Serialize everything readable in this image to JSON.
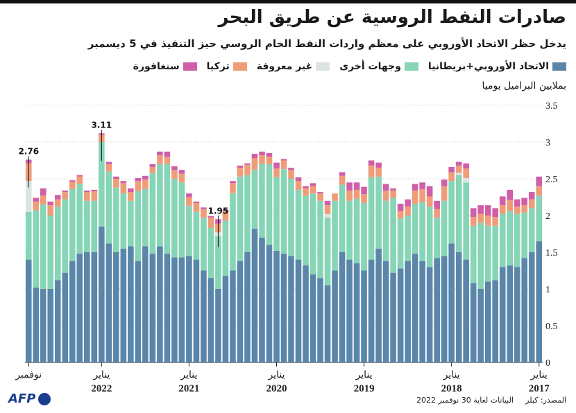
{
  "header": {
    "title": "صادرات النفط الروسية عن طريق البحر",
    "subtitle": "يدخل حظر الاتحاد الأوروبي على معظم واردات النفط الخام الروسي حيز التنفيذ في 5 ديسمبر",
    "unit": "بملايين البراميل يوميا"
  },
  "legend": [
    {
      "label": "الاتحاد الأوروبي+بريطانيا",
      "color": "#5a86aa"
    },
    {
      "label": "وجهات أخرى",
      "color": "#86d5b6"
    },
    {
      "label": "غير معروفة",
      "color": "#dde3e3"
    },
    {
      "label": "تركيا",
      "color": "#ef9d79"
    },
    {
      "label": "سنغافورة",
      "color": "#cf5fa8"
    }
  ],
  "footer": {
    "source": "المصدر: كبلر",
    "as_of": "البيانات لغاية 30 نوفمبر 2022",
    "logo": "AFP"
  },
  "chart_data": {
    "type": "bar",
    "stacked": true,
    "x_direction": "right-to-left (oldest month on the right)",
    "ylim": [
      0,
      3.5
    ],
    "yticks": [
      0,
      0.5,
      1,
      1.5,
      2,
      2.5,
      3,
      3.5
    ],
    "grid": true,
    "x_labels": [
      {
        "month_label": "يناير",
        "year": "2017",
        "month_index": 0
      },
      {
        "month_label": "يناير",
        "year": "2018",
        "month_index": 12
      },
      {
        "month_label": "يناير",
        "year": "2019",
        "month_index": 24
      },
      {
        "month_label": "يناير",
        "year": "2020",
        "month_index": 36
      },
      {
        "month_label": "يناير",
        "year": "2021",
        "month_index": 48
      },
      {
        "month_label": "يناير",
        "year": "2022",
        "month_index": 60
      },
      {
        "month_label": "نوفمبر",
        "year": "",
        "month_index": 70
      }
    ],
    "annotations": [
      {
        "text": "2.76",
        "month_index": 70
      },
      {
        "text": "3.11",
        "month_index": 60
      },
      {
        "text": "1.95",
        "month_index": 44
      }
    ],
    "series": [
      {
        "name": "الاتحاد الأوروبي+بريطانيا",
        "color": "#5a86aa",
        "values": [
          1.65,
          1.5,
          1.42,
          1.3,
          1.32,
          1.3,
          1.12,
          1.1,
          1.0,
          1.08,
          1.4,
          1.5,
          1.62,
          1.45,
          1.42,
          1.3,
          1.38,
          1.48,
          1.38,
          1.28,
          1.22,
          1.38,
          1.55,
          1.4,
          1.25,
          1.35,
          1.4,
          1.5,
          1.25,
          1.05,
          1.15,
          1.2,
          1.32,
          1.4,
          1.45,
          1.48,
          1.52,
          1.6,
          1.7,
          1.82,
          1.5,
          1.38,
          1.25,
          1.18,
          1.0,
          1.15,
          1.25,
          1.4,
          1.45,
          1.43,
          1.43,
          1.48,
          1.58,
          1.48,
          1.58,
          1.38,
          1.58,
          1.55,
          1.5,
          1.62,
          1.85,
          1.5,
          1.5,
          1.48,
          1.38,
          1.22,
          1.12,
          1.0,
          1.0,
          1.02,
          1.4
        ]
      },
      {
        "name": "وجهات أخرى",
        "color": "#86d5b6",
        "values": [
          0.62,
          0.6,
          0.62,
          0.72,
          0.74,
          0.72,
          0.74,
          0.76,
          0.9,
          0.78,
          1.05,
          1.05,
          0.85,
          0.75,
          0.55,
          0.82,
          0.8,
          0.68,
          0.62,
          0.68,
          1.02,
          0.82,
          0.98,
          1.12,
          0.92,
          0.88,
          0.8,
          0.92,
          0.95,
          0.92,
          1.05,
          1.1,
          0.95,
          0.95,
          1.05,
          1.15,
          1.0,
          1.1,
          1.0,
          0.8,
          1.05,
          1.15,
          1.05,
          0.75,
          0.72,
          0.68,
          0.72,
          0.65,
          0.68,
          1.02,
          1.07,
          1.22,
          1.12,
          1.1,
          0.78,
          0.95,
          0.62,
          0.75,
          0.88,
          0.98,
          1.15,
          0.7,
          0.7,
          0.95,
          0.98,
          1.0,
          1.0,
          1.0,
          1.15,
          1.05,
          0.65
        ]
      },
      {
        "name": "غير معروفة",
        "color": "#dde3e3",
        "values": [
          0.0,
          0.0,
          0.0,
          0.0,
          0.0,
          0.0,
          0.0,
          0.0,
          0.0,
          0.0,
          0.06,
          0.03,
          0.0,
          0.0,
          0.0,
          0.0,
          0.0,
          0.0,
          0.0,
          0.0,
          0.0,
          0.0,
          0.0,
          0.0,
          0.0,
          0.0,
          0.0,
          0.0,
          0.0,
          0.05,
          0.0,
          0.0,
          0.0,
          0.0,
          0.0,
          0.0,
          0.0,
          0.0,
          0.0,
          0.0,
          0.0,
          0.0,
          0.0,
          0.0,
          0.05,
          0.0,
          0.0,
          0.0,
          0.0,
          0.0,
          0.0,
          0.0,
          0.0,
          0.0,
          0.0,
          0.0,
          0.0,
          0.0,
          0.0,
          0.0,
          0.0,
          0.0,
          0.0,
          0.0,
          0.0,
          0.0,
          0.0,
          0.0,
          0.0,
          0.0,
          0.42
        ]
      },
      {
        "name": "تركيا",
        "color": "#ef9d79",
        "values": [
          0.13,
          0.12,
          0.1,
          0.1,
          0.15,
          0.12,
          0.12,
          0.14,
          0.12,
          0.12,
          0.13,
          0.1,
          0.12,
          0.2,
          0.12,
          0.14,
          0.18,
          0.18,
          0.12,
          0.1,
          0.1,
          0.14,
          0.12,
          0.16,
          0.12,
          0.12,
          0.14,
          0.12,
          0.1,
          0.12,
          0.1,
          0.1,
          0.1,
          0.12,
          0.12,
          0.12,
          0.12,
          0.1,
          0.12,
          0.16,
          0.14,
          0.12,
          0.14,
          0.13,
          0.12,
          0.14,
          0.12,
          0.12,
          0.12,
          0.12,
          0.12,
          0.1,
          0.12,
          0.08,
          0.13,
          0.14,
          0.12,
          0.14,
          0.12,
          0.1,
          0.1,
          0.13,
          0.12,
          0.1,
          0.1,
          0.1,
          0.1,
          0.14,
          0.12,
          0.12,
          0.24
        ]
      },
      {
        "name": "سنغافورة",
        "color": "#cf5fa8",
        "values": [
          0.13,
          0.1,
          0.1,
          0.1,
          0.14,
          0.12,
          0.12,
          0.14,
          0.12,
          0.12,
          0.07,
          0.05,
          0.07,
          0.09,
          0.11,
          0.14,
          0.09,
          0.09,
          0.1,
          0.1,
          0.03,
          0.09,
          0.07,
          0.07,
          0.1,
          0.1,
          0.11,
          0.05,
          0.0,
          0.06,
          0.02,
          0.04,
          0.03,
          0.05,
          0.03,
          0.02,
          0.08,
          0.05,
          0.05,
          0.06,
          0.02,
          0.03,
          0.03,
          0.02,
          0.06,
          0.02,
          0.02,
          0.02,
          0.05,
          0.05,
          0.05,
          0.07,
          0.05,
          0.04,
          0.05,
          0.04,
          0.05,
          0.03,
          0.03,
          0.03,
          0.02,
          0.02,
          0.02,
          0.02,
          0.02,
          0.02,
          0.06,
          0.05,
          0.1,
          0.05,
          0.05
        ]
      }
    ]
  }
}
